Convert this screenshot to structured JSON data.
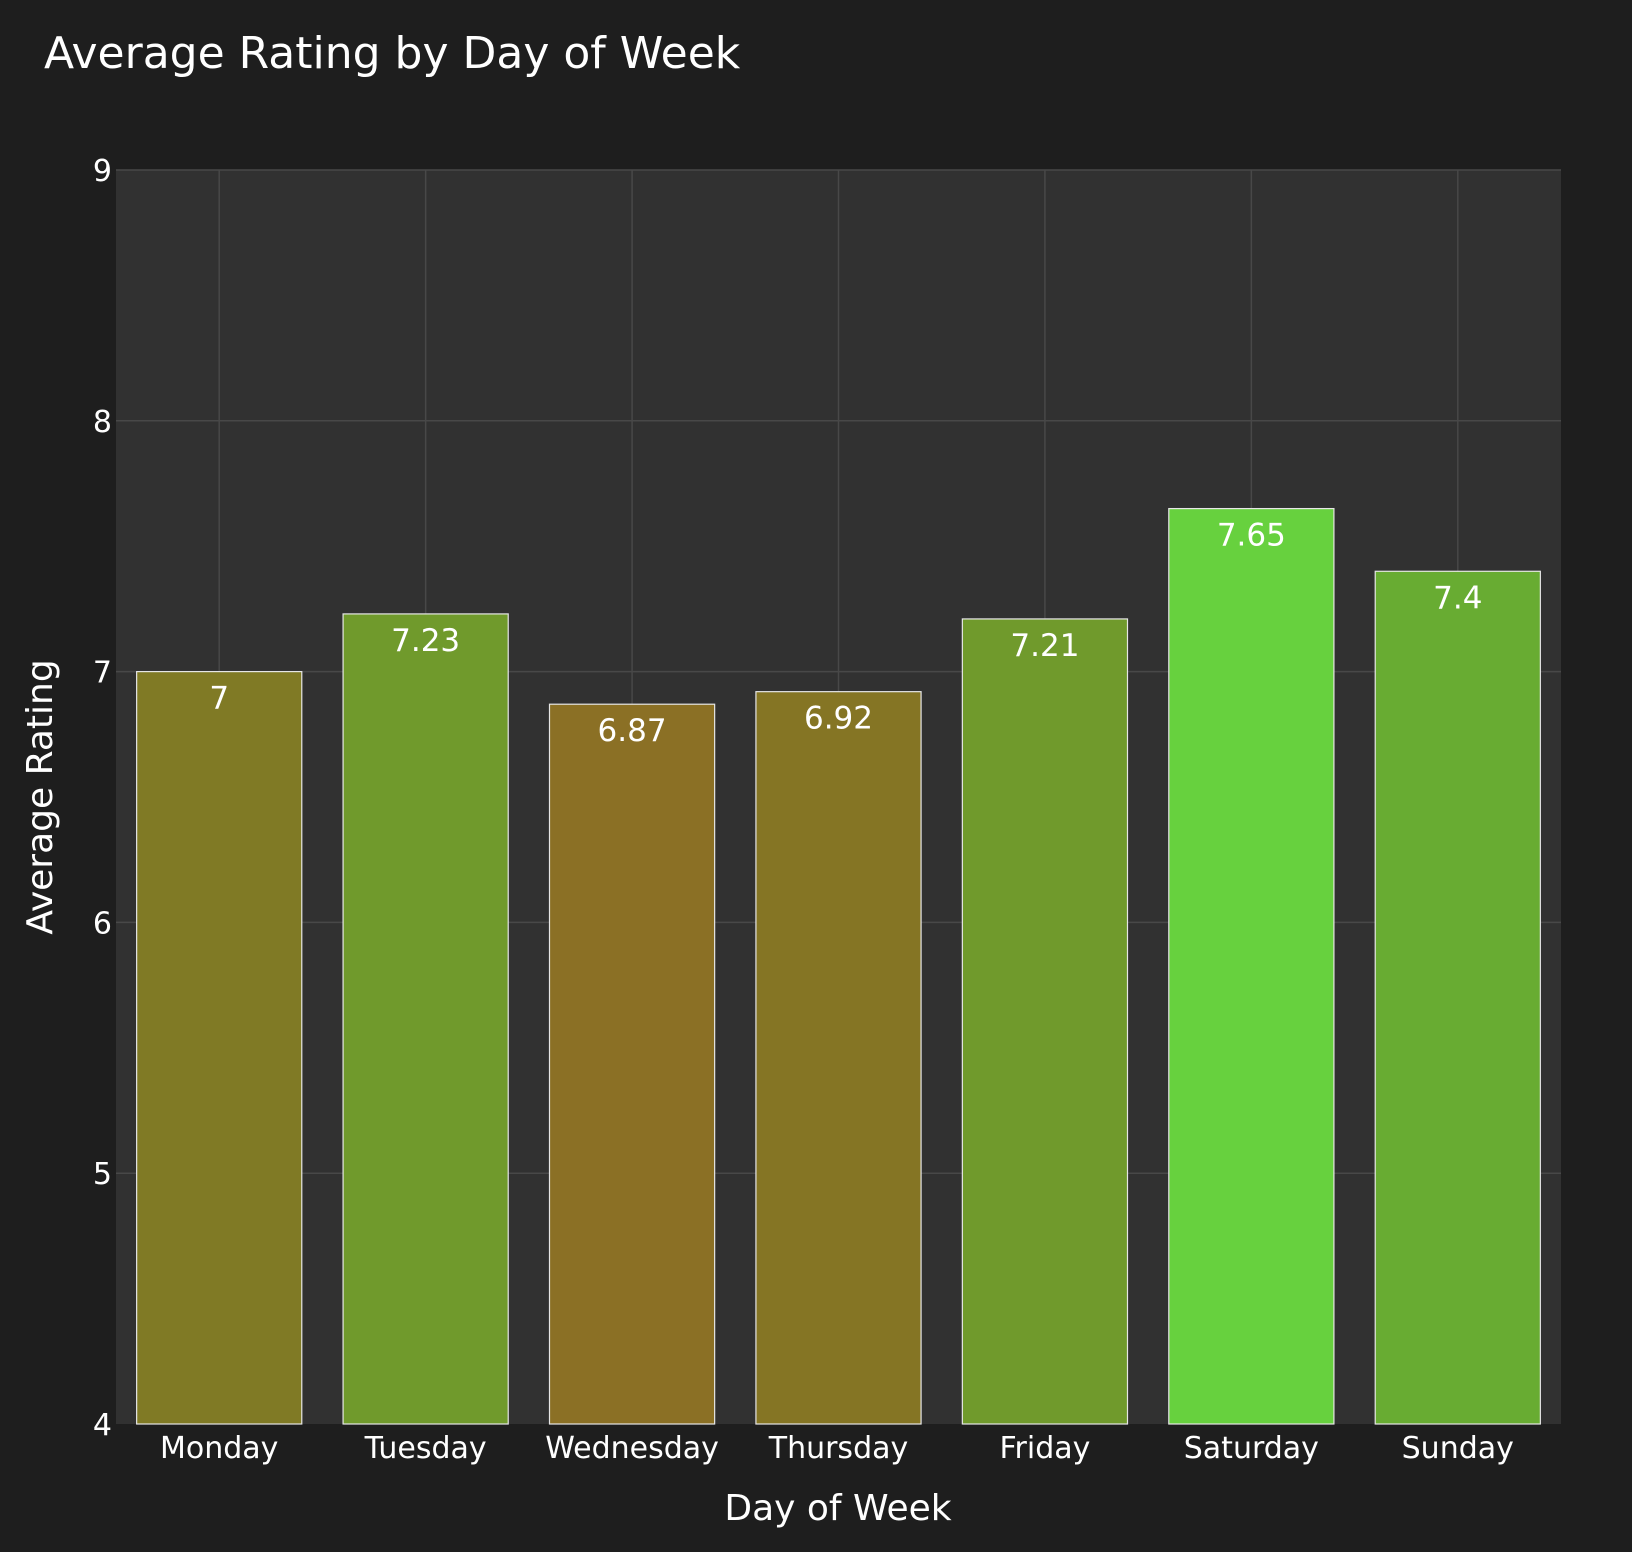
{
  "chart_data": {
    "type": "bar",
    "title": "Average Rating by Day of Week",
    "xlabel": "Day of Week",
    "ylabel": "Average Rating",
    "categories": [
      "Monday",
      "Tuesday",
      "Wednesday",
      "Thursday",
      "Friday",
      "Saturday",
      "Sunday"
    ],
    "values": [
      7,
      7.23,
      6.87,
      6.92,
      7.21,
      7.65,
      7.4
    ],
    "value_labels": [
      "7",
      "7.23",
      "6.87",
      "6.92",
      "7.21",
      "7.65",
      "7.4"
    ],
    "ylim": [
      4,
      9
    ],
    "yticks": [
      "4",
      "5",
      "6",
      "7",
      "8",
      "9"
    ],
    "grid": true,
    "bar_colors": [
      "#807a25",
      "#709a2c",
      "#8b7025",
      "#857524",
      "#709a2c",
      "#67d13e",
      "#68ac32"
    ],
    "colors": {
      "page_background": "#1e1e1e",
      "plot_background": "#313131",
      "grid": "#484848",
      "text": "#ffffff",
      "bar_outline": "#e6e6e6"
    }
  }
}
